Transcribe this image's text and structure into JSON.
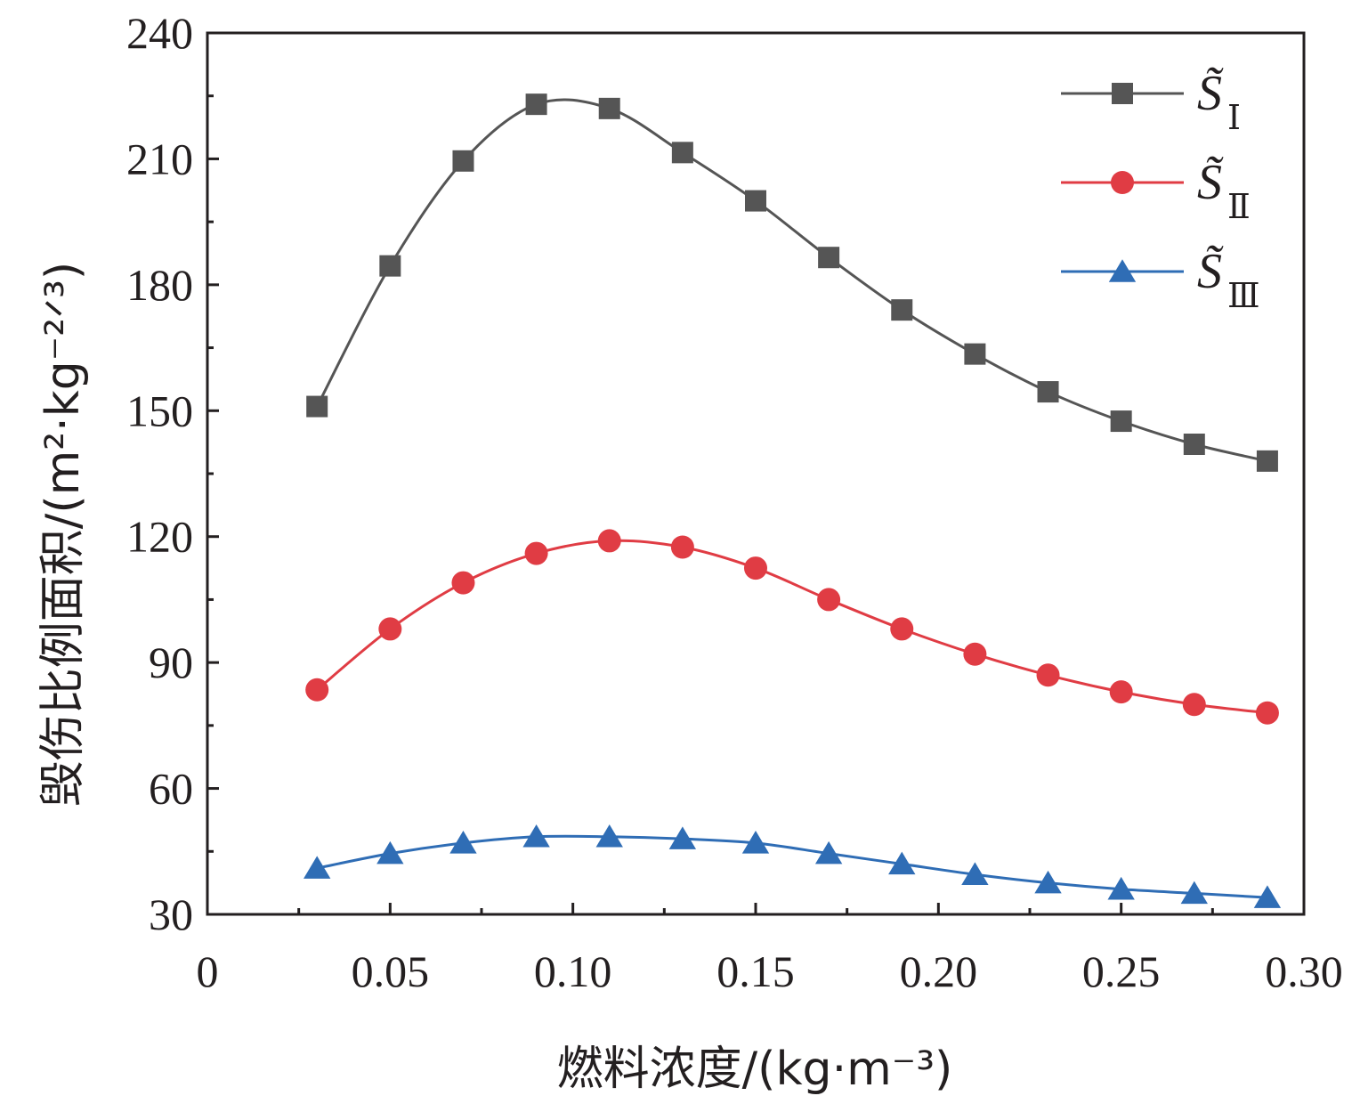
{
  "chart_data": {
    "type": "line",
    "xlabel": "燃料浓度/(kg·m⁻³)",
    "ylabel": "毁伤比例面积/(m²·kg⁻²ᐟ³)",
    "xlim": [
      0,
      0.3
    ],
    "ylim": [
      30,
      240
    ],
    "xticks": [
      0,
      0.05,
      0.1,
      0.15,
      0.2,
      0.25,
      0.3
    ],
    "xtick_labels": [
      "0",
      "0.05",
      "0.10",
      "0.15",
      "0.20",
      "0.25",
      "0.30"
    ],
    "yticks": [
      30,
      60,
      90,
      120,
      150,
      180,
      210,
      240
    ],
    "ytick_labels": [
      "30",
      "60",
      "90",
      "120",
      "150",
      "180",
      "210",
      "240"
    ],
    "grid": false,
    "legend_position": "top-right",
    "x": [
      0.03,
      0.05,
      0.07,
      0.09,
      0.11,
      0.13,
      0.15,
      0.17,
      0.19,
      0.21,
      0.23,
      0.25,
      0.27,
      0.29
    ],
    "series": [
      {
        "name": "S̃Ⅰ",
        "name_main": "S̃",
        "name_sub": "Ⅰ",
        "color": "#555555",
        "marker": "square",
        "values": [
          151,
          184.5,
          209.5,
          223,
          222,
          211.5,
          200,
          186.5,
          174,
          163.5,
          154.5,
          147.5,
          142,
          138
        ]
      },
      {
        "name": "S̃Ⅱ",
        "name_main": "S̃",
        "name_sub": "Ⅱ",
        "color": "#e03c44",
        "marker": "circle",
        "values": [
          83.5,
          98,
          109,
          116,
          119,
          117.5,
          112.5,
          105,
          98,
          92,
          87,
          83,
          80,
          78
        ]
      },
      {
        "name": "S̃Ⅲ",
        "name_main": "S̃",
        "name_sub": "Ⅲ",
        "color": "#2f6db5",
        "marker": "triangle",
        "values": [
          41,
          44.5,
          47,
          48.5,
          48.5,
          48,
          47,
          44.5,
          42,
          39.5,
          37.5,
          36,
          35,
          34
        ]
      }
    ]
  }
}
